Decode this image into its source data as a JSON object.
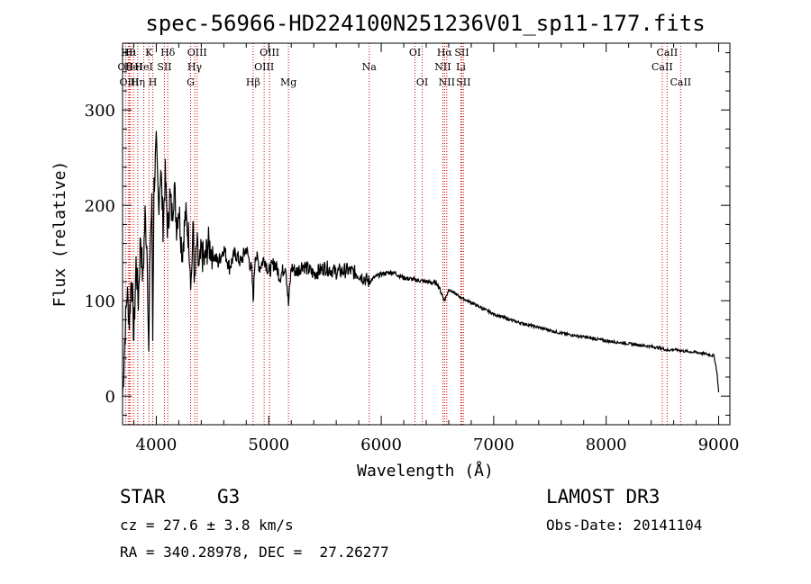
{
  "chart_data": {
    "type": "line",
    "title": "spec-56966-HD224100N251236V01_sp11-177.fits",
    "xlabel": "Wavelength (Å)",
    "ylabel": "Flux (relative)",
    "xlim": [
      3700,
      9100
    ],
    "ylim": [
      -30,
      370
    ],
    "xticks": [
      4000,
      5000,
      6000,
      7000,
      8000,
      9000
    ],
    "yticks": [
      0,
      100,
      200,
      300
    ],
    "series": [
      {
        "name": "flux",
        "x": [
          3700,
          3720,
          3740,
          3760,
          3780,
          3800,
          3820,
          3840,
          3860,
          3880,
          3900,
          3920,
          3933,
          3945,
          3960,
          3968,
          3980,
          4000,
          4020,
          4040,
          4060,
          4080,
          4102,
          4120,
          4140,
          4160,
          4180,
          4200,
          4230,
          4260,
          4290,
          4310,
          4330,
          4340,
          4360,
          4380,
          4400,
          4430,
          4460,
          4500,
          4550,
          4600,
          4650,
          4700,
          4750,
          4800,
          4850,
          4861,
          4880,
          4920,
          4960,
          5000,
          5050,
          5100,
          5150,
          5175,
          5200,
          5250,
          5300,
          5400,
          5500,
          5600,
          5700,
          5800,
          5890,
          5950,
          6000,
          6100,
          6200,
          6300,
          6400,
          6500,
          6563,
          6600,
          6650,
          6700,
          6800,
          6900,
          7000,
          7200,
          7400,
          7600,
          7800,
          8000,
          8200,
          8400,
          8500,
          8542,
          8600,
          8700,
          8800,
          8900,
          8960,
          8985,
          9000
        ],
        "values": [
          0,
          60,
          110,
          80,
          130,
          60,
          140,
          100,
          170,
          120,
          190,
          150,
          40,
          160,
          200,
          60,
          220,
          260,
          200,
          240,
          180,
          230,
          170,
          210,
          190,
          220,
          180,
          200,
          150,
          190,
          165,
          120,
          180,
          110,
          160,
          130,
          150,
          140,
          160,
          150,
          140,
          155,
          135,
          150,
          140,
          155,
          130,
          100,
          150,
          135,
          145,
          130,
          140,
          125,
          138,
          95,
          135,
          130,
          138,
          128,
          135,
          130,
          132,
          128,
          120,
          125,
          128,
          130,
          124,
          122,
          120,
          118,
          100,
          112,
          108,
          104,
          98,
          92,
          86,
          78,
          72,
          66,
          62,
          58,
          55,
          52,
          50,
          48,
          49,
          47,
          46,
          44,
          42,
          25,
          4
        ]
      }
    ],
    "line_markers": [
      {
        "x": 3727,
        "label": "OII",
        "row": 2
      },
      {
        "x": 3750,
        "label": "Hθ",
        "row": 1
      },
      {
        "x": 3760,
        "label": "OIII",
        "row": 3
      },
      {
        "x": 3771,
        "label": "Hι",
        "row": 1
      },
      {
        "x": 3797,
        "label": "HeI",
        "row": 2
      },
      {
        "x": 3835,
        "label": "Hη",
        "row": 3
      },
      {
        "x": 3889,
        "label": "HeI",
        "row": 2
      },
      {
        "x": 3934,
        "label": "K",
        "row": 1
      },
      {
        "x": 3969,
        "label": "H",
        "row": 3
      },
      {
        "x": 4072,
        "label": "SII",
        "row": 2
      },
      {
        "x": 4102,
        "label": "Hδ",
        "row": 1
      },
      {
        "x": 4305,
        "label": "G",
        "row": 3
      },
      {
        "x": 4341,
        "label": "Hγ",
        "row": 2
      },
      {
        "x": 4363,
        "label": "OIII",
        "row": 1
      },
      {
        "x": 4861,
        "label": "Hβ",
        "row": 3
      },
      {
        "x": 4959,
        "label": "OIII",
        "row": 2
      },
      {
        "x": 5007,
        "label": "OIII",
        "row": 1
      },
      {
        "x": 5175,
        "label": "Mg",
        "row": 3
      },
      {
        "x": 5893,
        "label": "Na",
        "row": 2
      },
      {
        "x": 6300,
        "label": "OI",
        "row": 1
      },
      {
        "x": 6364,
        "label": "OI",
        "row": 3
      },
      {
        "x": 6548,
        "label": "NII",
        "row": 2
      },
      {
        "x": 6563,
        "label": "Hα",
        "row": 1
      },
      {
        "x": 6583,
        "label": "NII",
        "row": 3
      },
      {
        "x": 6708,
        "label": "Li",
        "row": 2
      },
      {
        "x": 6716,
        "label": "SII",
        "row": 1
      },
      {
        "x": 6731,
        "label": "SII",
        "row": 3
      },
      {
        "x": 8498,
        "label": "CaII",
        "row": 2
      },
      {
        "x": 8542,
        "label": "CaII",
        "row": 1
      },
      {
        "x": 8662,
        "label": "CaII",
        "row": 3
      }
    ],
    "marker_color": "#cc0000",
    "line_color": "#000000"
  },
  "info": {
    "object_class": "STAR",
    "subclass": "G3",
    "survey": "LAMOST DR3",
    "redshift": "cz = 27.6 ± 3.8 km/s",
    "obs_date": "Obs-Date: 20141104",
    "coords": "RA = 340.28978, DEC =  27.26277"
  }
}
